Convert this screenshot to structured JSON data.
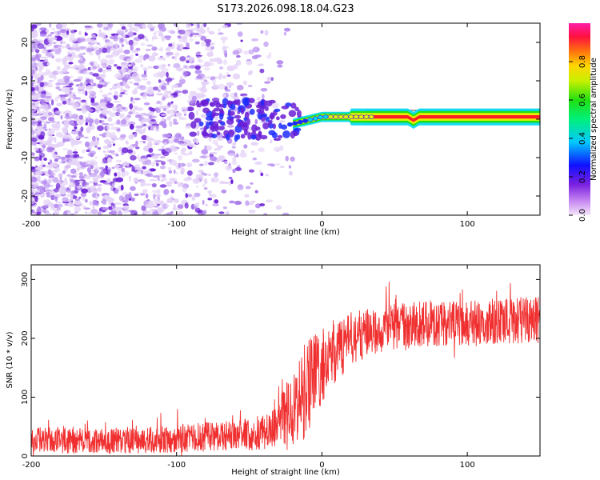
{
  "figure_title": "S173.2026.098.18.04.G23",
  "chart_data": [
    {
      "type": "heatmap",
      "title": "S173.2026.098.18.04.G23",
      "xlabel": "Height of straight line (km)",
      "ylabel": "Frequency (Hz)",
      "xlim": [
        -200,
        150
      ],
      "ylim": [
        -25,
        25
      ],
      "xticks": [
        -200,
        -100,
        0,
        100
      ],
      "yticks": [
        -20,
        -10,
        0,
        10,
        20
      ],
      "colorbar": {
        "label": "Normalized spectral amplitude",
        "range": [
          0,
          1
        ],
        "ticks": [
          "0.0",
          "0.2",
          "0.4",
          "0.6",
          "0.8"
        ],
        "tick_values": [
          0.0,
          0.2,
          0.4,
          0.6,
          0.8
        ]
      },
      "colors": {
        "purple_light": "#e4d2f7",
        "purple_mid": "#b68cf0",
        "purple_dark": "#6a1fd6",
        "blue": "#1c2cff",
        "cyan": "#00d8f0",
        "green": "#22e010",
        "yellow": "#e8f000",
        "red": "#ff1e28"
      },
      "signal": {
        "onset_km": -20,
        "stable_from_km": 30,
        "frequency_hz": 0.6,
        "dip_km": 63,
        "dip_depth_hz": 0.9
      }
    },
    {
      "type": "line",
      "xlabel": "Height of straight line (km)",
      "ylabel": "SNR (10 * v/v)",
      "xlim": [
        -200,
        150
      ],
      "ylim": [
        0,
        325
      ],
      "xticks": [
        -200,
        -100,
        0,
        100
      ],
      "yticks": [
        0,
        100,
        200,
        300
      ],
      "line_color": "#f03030",
      "series": [
        {
          "name": "SNR",
          "anchors_x": [
            -200,
            -150,
            -100,
            -60,
            -35,
            -20,
            -10,
            0,
            20,
            40,
            70,
            100,
            150
          ],
          "anchors_y": [
            27,
            25,
            30,
            35,
            42,
            75,
            120,
            150,
            200,
            215,
            225,
            225,
            232
          ],
          "noise_amplitude": [
            22,
            22,
            24,
            26,
            32,
            70,
            85,
            60,
            45,
            40,
            40,
            40,
            40
          ]
        }
      ]
    }
  ]
}
